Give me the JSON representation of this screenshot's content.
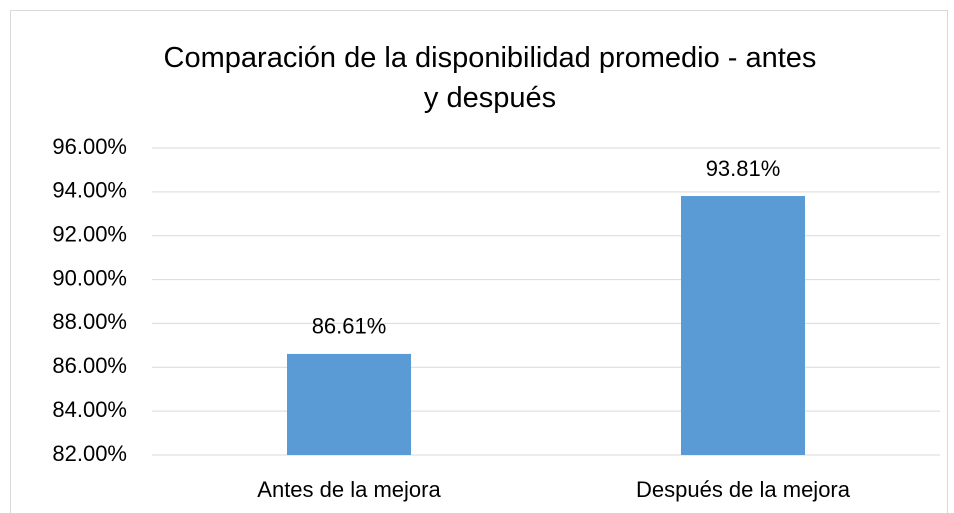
{
  "chart_data": {
    "type": "bar",
    "title": "Comparación de la disponibilidad promedio  - antes y después",
    "categories": [
      "Antes de la mejora",
      "Después de la mejora"
    ],
    "values": [
      86.61,
      93.81
    ],
    "value_labels": [
      "86.61%",
      "93.81%"
    ],
    "color": "#5b9bd5",
    "ylim": [
      82,
      96
    ],
    "yticks": [
      {
        "value": 82,
        "label": "82.00%"
      },
      {
        "value": 84,
        "label": "84.00%"
      },
      {
        "value": 86,
        "label": "86.00%"
      },
      {
        "value": 88,
        "label": "88.00%"
      },
      {
        "value": 90,
        "label": "90.00%"
      },
      {
        "value": 92,
        "label": "92.00%"
      },
      {
        "value": 94,
        "label": "94.00%"
      },
      {
        "value": 96,
        "label": "96.00%"
      }
    ],
    "grid": true
  }
}
